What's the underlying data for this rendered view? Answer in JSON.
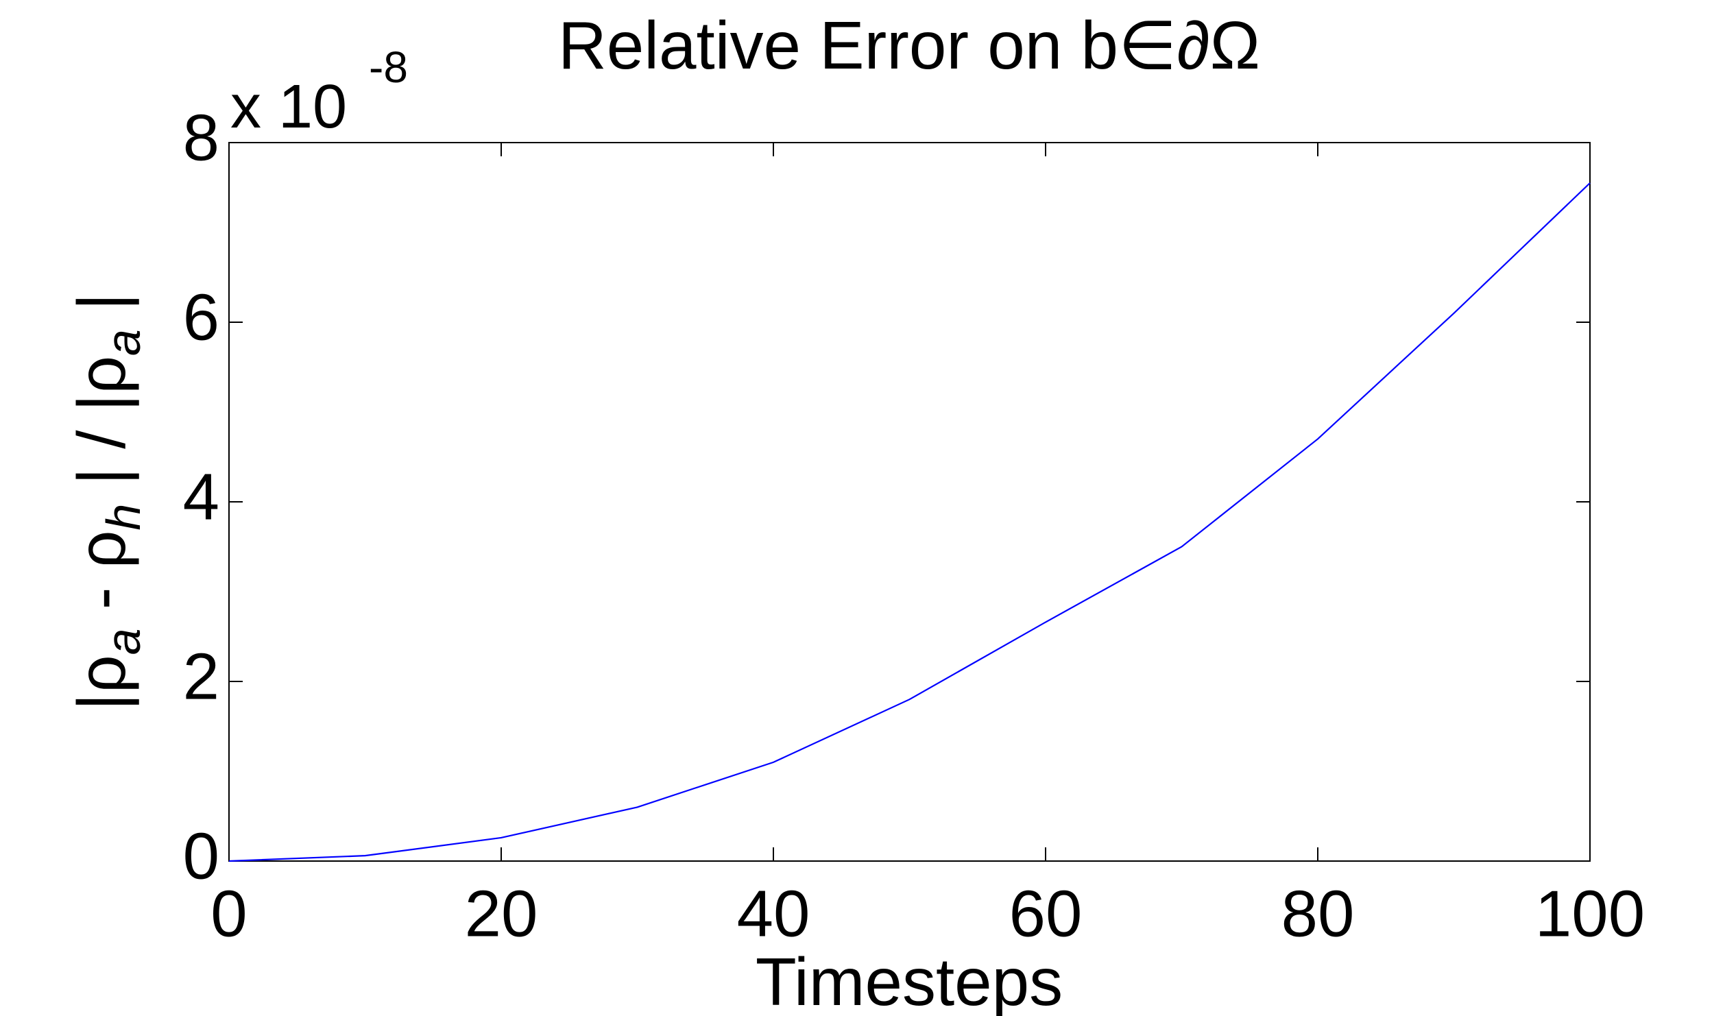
{
  "chart_data": {
    "type": "line",
    "title": "Relative Error on b∈∂Ω",
    "x_label": "Timesteps",
    "y_label": [
      "|ρ",
      "a",
      " - ρ",
      "h",
      " | / |ρ",
      "a",
      " |"
    ],
    "y_multiplier": {
      "base": "x 10",
      "exponent": "-8"
    },
    "x": [
      0,
      10,
      20,
      30,
      40,
      50,
      60,
      70,
      80,
      90,
      100
    ],
    "series": [
      {
        "color": "#0000ff",
        "values": [
          0,
          0.06,
          0.26,
          0.6,
          1.1,
          1.8,
          2.66,
          3.5,
          4.7,
          6.1,
          7.55
        ]
      }
    ],
    "xlim": [
      0,
      100
    ],
    "xticks": [
      0,
      20,
      40,
      60,
      80,
      100
    ],
    "ylim": [
      0,
      8
    ],
    "yticks": [
      0,
      2,
      4,
      6,
      8
    ],
    "grid": false
  }
}
